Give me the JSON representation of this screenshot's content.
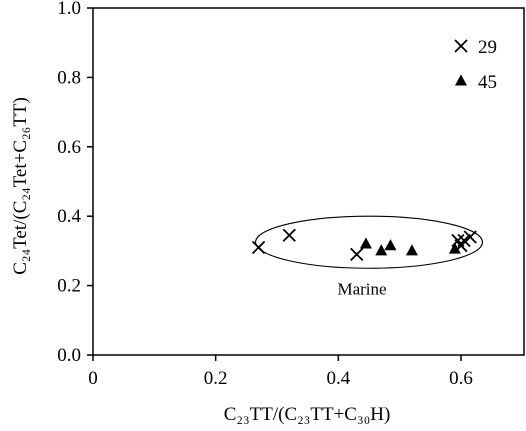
{
  "chart_data": {
    "type": "scatter",
    "xlabel": "C₂₃TT/(C₂₃TT+C₃₀H)",
    "ylabel": "C₂₄Tet/(C₂₄Tet+C₂₆TT)",
    "xlim": [
      0,
      0.7
    ],
    "ylim": [
      0,
      1.0
    ],
    "x_ticks": [
      "0",
      "0.2",
      "0.4",
      "0.6"
    ],
    "y_ticks": [
      "0.0",
      "0.2",
      "0.4",
      "0.6",
      "0.8",
      "1.0"
    ],
    "grid": false,
    "legend_position": "top-right",
    "series": [
      {
        "name": "29",
        "marker": "cross",
        "points": [
          {
            "x": 0.27,
            "y": 0.31
          },
          {
            "x": 0.32,
            "y": 0.345
          },
          {
            "x": 0.43,
            "y": 0.29
          },
          {
            "x": 0.595,
            "y": 0.33
          },
          {
            "x": 0.6,
            "y": 0.315
          },
          {
            "x": 0.605,
            "y": 0.33
          },
          {
            "x": 0.615,
            "y": 0.34
          }
        ]
      },
      {
        "name": "45",
        "marker": "triangle",
        "points": [
          {
            "x": 0.445,
            "y": 0.32
          },
          {
            "x": 0.47,
            "y": 0.3
          },
          {
            "x": 0.485,
            "y": 0.315
          },
          {
            "x": 0.52,
            "y": 0.3
          },
          {
            "x": 0.59,
            "y": 0.305
          }
        ]
      }
    ],
    "annotations": [
      {
        "type": "ellipse",
        "text": "Marine",
        "cx": 0.45,
        "cy": 0.325,
        "rx": 0.185,
        "ry": 0.075
      }
    ]
  }
}
